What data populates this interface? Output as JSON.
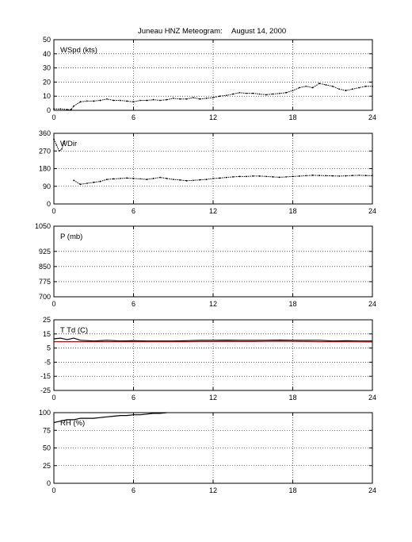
{
  "title": {
    "main": "Juneau HNZ Meteogram:",
    "date": "August 14, 2000"
  },
  "chart_data": [
    {
      "type": "scatter",
      "label": "WSpd (kts)",
      "xlim": [
        0,
        24
      ],
      "ylim": [
        0,
        50
      ],
      "xticks": [
        0,
        6,
        12,
        18,
        24
      ],
      "yticks": [
        0,
        10,
        20,
        30,
        40,
        50
      ],
      "grid": true,
      "series": [
        {
          "color": "#000000",
          "x": [
            0,
            0.5,
            1,
            1.3,
            1.5,
            2,
            2.5,
            3,
            3.5,
            4,
            4.5,
            5,
            5.5,
            6,
            6.5,
            7,
            7.5,
            8,
            8.5,
            9,
            9.5,
            10,
            10.5,
            11,
            11.5,
            12,
            12.5,
            13,
            13.5,
            14,
            14.5,
            15,
            15.5,
            16,
            16.5,
            17,
            17.5,
            18,
            18.5,
            19,
            19.5,
            20,
            20.5,
            21,
            21.5,
            22,
            22.5,
            23,
            23.5,
            24
          ],
          "y": [
            1,
            1,
            0.5,
            0.5,
            3,
            6,
            6.5,
            6.5,
            7,
            8,
            7,
            7,
            6.5,
            6,
            7,
            7,
            7.5,
            7,
            7.5,
            8.5,
            8,
            8,
            9,
            8,
            8.5,
            9,
            10,
            10.5,
            11.5,
            12.5,
            12,
            12,
            11.5,
            11,
            11.5,
            12,
            12.5,
            14,
            16,
            17,
            16,
            19,
            18,
            17,
            15,
            14,
            15,
            16,
            17,
            17
          ]
        }
      ]
    },
    {
      "type": "scatter",
      "label": "WDir",
      "xlim": [
        0,
        24
      ],
      "ylim": [
        0,
        360
      ],
      "xticks": [
        0,
        6,
        12,
        18,
        24
      ],
      "yticks": [
        0,
        90,
        180,
        270,
        360
      ],
      "grid": true,
      "series": [
        {
          "color": "#000000",
          "x": [
            0,
            0.2,
            0.4,
            0.6,
            0.8
          ],
          "y": [
            330,
            300,
            270,
            280,
            320
          ]
        },
        {
          "color": "#000000",
          "x": [
            1.5,
            2,
            2.5,
            3,
            3.5,
            4,
            4.5,
            5,
            5.5,
            6,
            6.5,
            7,
            7.5,
            8,
            8.5,
            9,
            9.5,
            10,
            10.5,
            11,
            11.5,
            12,
            12.5,
            13,
            13.5,
            14,
            14.5,
            15,
            15.5,
            16,
            16.5,
            17,
            17.5,
            18,
            18.5,
            19,
            19.5,
            20,
            20.5,
            21,
            21.5,
            22,
            22.5,
            23,
            23.5,
            24
          ],
          "y": [
            120,
            100,
            105,
            110,
            115,
            125,
            128,
            130,
            132,
            130,
            128,
            125,
            130,
            135,
            130,
            125,
            122,
            118,
            120,
            123,
            125,
            130,
            132,
            135,
            138,
            140,
            140,
            142,
            142,
            140,
            138,
            136,
            138,
            140,
            142,
            144,
            146,
            145,
            144,
            143,
            142,
            143,
            145,
            146,
            145,
            145
          ]
        }
      ]
    },
    {
      "type": "line",
      "label": "P (mb)",
      "xlim": [
        0,
        24
      ],
      "ylim": [
        700,
        1050
      ],
      "xticks": [
        0,
        6,
        12,
        18,
        24
      ],
      "yticks": [
        700,
        775,
        850,
        925,
        1050
      ],
      "grid": true,
      "series": []
    },
    {
      "type": "line",
      "label": "T Td (C)",
      "xlim": [
        0,
        24
      ],
      "ylim": [
        -25,
        25
      ],
      "xticks": [
        0,
        6,
        12,
        18,
        24
      ],
      "yticks": [
        -25,
        -15,
        -5,
        5,
        15,
        25
      ],
      "grid": true,
      "series": [
        {
          "color": "#000000",
          "x": [
            0,
            0.5,
            1,
            1.5,
            2,
            3,
            4,
            5,
            6,
            7,
            8,
            9,
            10,
            11,
            12,
            13,
            14,
            15,
            16,
            17,
            18,
            19,
            20,
            21,
            22,
            23,
            24
          ],
          "y": [
            11.5,
            12,
            11,
            12,
            10.5,
            10,
            10.5,
            10,
            10.2,
            10,
            10,
            10,
            10.2,
            10.5,
            10.5,
            10.6,
            10.5,
            10.5,
            10.5,
            10.7,
            10.5,
            10.5,
            10.5,
            10,
            10.2,
            10,
            10
          ]
        },
        {
          "color": "#cc0000",
          "x": [
            0,
            1,
            2,
            3,
            4,
            5,
            6,
            7,
            8,
            9,
            10,
            11,
            12,
            13,
            14,
            15,
            16,
            17,
            18,
            19,
            20,
            21,
            22,
            23,
            24
          ],
          "y": [
            9.5,
            9.5,
            9.5,
            9.5,
            9.5,
            9.5,
            9.5,
            9.5,
            9.5,
            9.5,
            9.5,
            9.6,
            9.6,
            9.6,
            9.6,
            9.6,
            9.7,
            9.8,
            9.7,
            9.6,
            9.5,
            9.5,
            9.5,
            9.4,
            9.3
          ]
        }
      ]
    },
    {
      "type": "line",
      "label": "RH (%)",
      "xlim": [
        0,
        24
      ],
      "ylim": [
        0,
        100
      ],
      "xticks": [
        0,
        6,
        12,
        18,
        24
      ],
      "yticks": [
        0,
        25,
        50,
        75,
        100
      ],
      "grid": true,
      "series": [
        {
          "color": "#000000",
          "x": [
            0,
            0.5,
            1,
            1.5,
            2,
            2.5,
            3,
            3.5,
            4,
            4.5,
            5,
            5.5,
            6,
            6.5,
            7,
            7.5,
            8,
            8.5
          ],
          "y": [
            86,
            88,
            90,
            90,
            92,
            92,
            92,
            93,
            94,
            95,
            96,
            96,
            97,
            97,
            98,
            99,
            99,
            100
          ]
        }
      ]
    }
  ]
}
